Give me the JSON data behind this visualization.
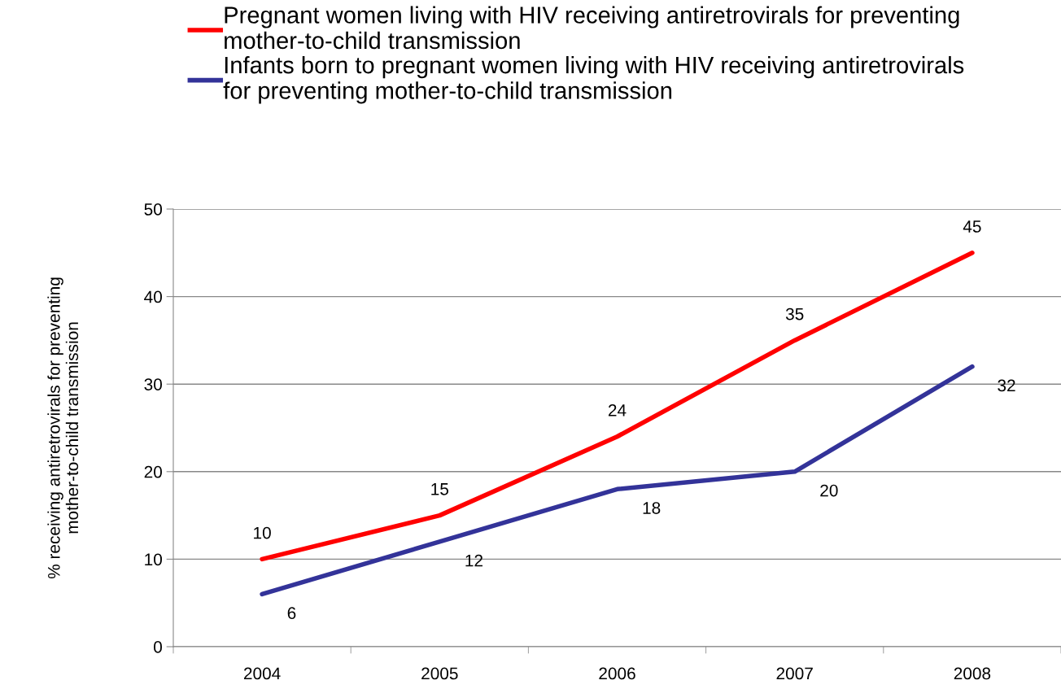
{
  "chart_data": {
    "type": "line",
    "ylabel": "% receiving antiretrovirals for preventing mother-to-child transmission",
    "categories": [
      "2004",
      "2005",
      "2006",
      "2007",
      "2008"
    ],
    "series": [
      {
        "name": "Pregnant women living with HIV receiving antiretrovirals for preventing mother-to-child transmission",
        "color": "#ff0000",
        "values": [
          10,
          15,
          24,
          35,
          45
        ]
      },
      {
        "name": "Infants born to pregnant women living with HIV receiving antiretrovirals for preventing mother-to-child transmission",
        "color": "#333399",
        "values": [
          6,
          12,
          18,
          20,
          32
        ]
      }
    ],
    "ylim": [
      0,
      50
    ],
    "yticks": [
      0,
      10,
      20,
      30,
      40,
      50
    ],
    "grid": "y",
    "legend": "top",
    "data_labels": true,
    "marker": "none",
    "line_style": "solid"
  }
}
